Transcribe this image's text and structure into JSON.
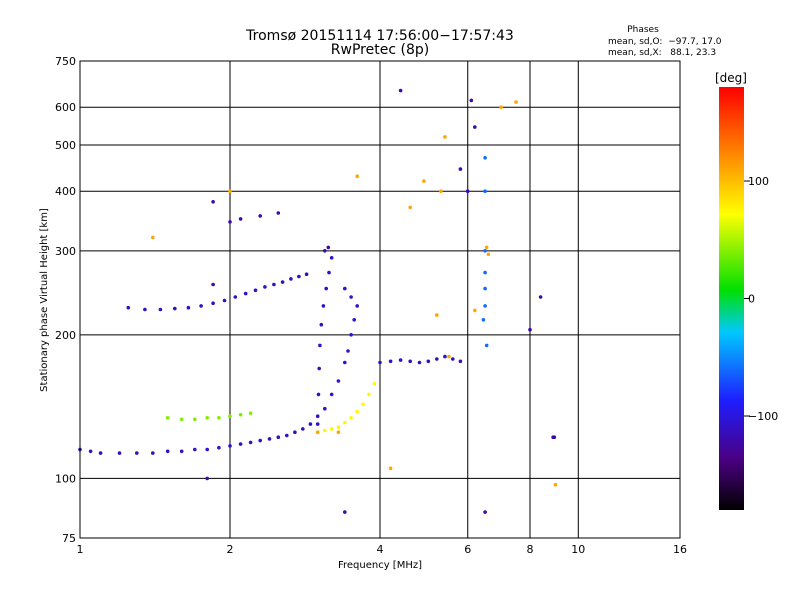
{
  "chart_data": {
    "type": "scatter",
    "title_line1": "Tromsø 20151114 17:56:00−17:57:43",
    "title_line2": "RwPretec (8p)",
    "phases": {
      "heading": "Phases",
      "line_o": "mean, sd,O:  −97.7, 17.0",
      "line_x": "mean, sd,X:   88.1, 23.3"
    },
    "xlabel": "Frequency [MHz]",
    "ylabel": "Stationary phase Virtual Height [km]",
    "xscale": "log",
    "yscale": "log",
    "xlim": [
      1,
      16
    ],
    "ylim": [
      75,
      750
    ],
    "x_ticks": [
      1,
      2,
      4,
      6,
      8,
      10,
      16
    ],
    "x_tick_labels": [
      "1",
      "2",
      "4",
      "6",
      "8",
      "10",
      "16"
    ],
    "y_ticks": [
      75,
      100,
      200,
      300,
      400,
      500,
      600,
      750
    ],
    "y_tick_labels": [
      "75",
      "100",
      "200",
      "300",
      "400",
      "500",
      "600",
      "750"
    ],
    "grid": true,
    "colorbar": {
      "label": "[deg]",
      "range": [
        -180,
        180
      ],
      "ticks": [
        100,
        0,
        -100
      ],
      "tick_labels": [
        "100",
        "0",
        "−100"
      ]
    },
    "traces": [
      {
        "name": "o-mode-low-layer",
        "phase": -110,
        "points": [
          [
            1.0,
            115
          ],
          [
            1.05,
            114
          ],
          [
            1.1,
            113
          ],
          [
            1.2,
            113
          ],
          [
            1.3,
            113
          ],
          [
            1.4,
            113
          ],
          [
            1.5,
            114
          ],
          [
            1.6,
            114
          ],
          [
            1.7,
            115
          ],
          [
            1.8,
            115
          ],
          [
            1.9,
            116
          ],
          [
            2.0,
            117
          ],
          [
            2.1,
            118
          ],
          [
            2.2,
            119
          ],
          [
            2.3,
            120
          ],
          [
            2.4,
            121
          ],
          [
            2.5,
            122
          ],
          [
            2.6,
            123
          ],
          [
            2.7,
            125
          ],
          [
            2.8,
            127
          ],
          [
            2.9,
            130
          ],
          [
            3.0,
            135
          ]
        ]
      },
      {
        "name": "o-mode-cusp",
        "phase": -110,
        "points": [
          [
            3.0,
            130
          ],
          [
            3.01,
            150
          ],
          [
            3.02,
            170
          ],
          [
            3.03,
            190
          ],
          [
            3.05,
            210
          ],
          [
            3.08,
            230
          ],
          [
            3.12,
            250
          ],
          [
            3.16,
            270
          ],
          [
            3.2,
            290
          ]
        ]
      },
      {
        "name": "o-mode-F-layer-base",
        "phase": -105,
        "points": [
          [
            3.1,
            140
          ],
          [
            3.2,
            150
          ],
          [
            3.3,
            160
          ],
          [
            3.4,
            175
          ],
          [
            3.45,
            185
          ],
          [
            3.5,
            200
          ],
          [
            3.55,
            215
          ],
          [
            3.6,
            230
          ],
          [
            3.5,
            240
          ],
          [
            3.4,
            250
          ]
        ]
      },
      {
        "name": "o-mode-upper-trace",
        "phase": -110,
        "points": [
          [
            1.25,
            228
          ],
          [
            1.35,
            226
          ],
          [
            1.45,
            226
          ],
          [
            1.55,
            227
          ],
          [
            1.65,
            228
          ],
          [
            1.75,
            230
          ],
          [
            1.85,
            233
          ],
          [
            1.95,
            236
          ],
          [
            2.05,
            240
          ],
          [
            2.15,
            244
          ],
          [
            2.25,
            248
          ],
          [
            2.35,
            252
          ],
          [
            2.45,
            255
          ],
          [
            2.55,
            258
          ],
          [
            2.65,
            262
          ],
          [
            2.75,
            265
          ],
          [
            2.85,
            268
          ]
        ]
      },
      {
        "name": "x-mode-trace",
        "phase": 75,
        "points": [
          [
            3.0,
            125
          ],
          [
            3.1,
            126
          ],
          [
            3.2,
            127
          ],
          [
            3.3,
            128
          ],
          [
            3.4,
            131
          ],
          [
            3.5,
            134
          ],
          [
            3.6,
            138
          ],
          [
            3.7,
            143
          ],
          [
            3.8,
            150
          ],
          [
            3.9,
            158
          ]
        ]
      },
      {
        "name": "mixed-1.5-2.0",
        "phase": 40,
        "points": [
          [
            1.5,
            134
          ],
          [
            1.6,
            133
          ],
          [
            1.7,
            133
          ],
          [
            1.8,
            134
          ],
          [
            1.9,
            134
          ],
          [
            2.0,
            135
          ],
          [
            2.1,
            136
          ],
          [
            2.2,
            137
          ]
        ]
      },
      {
        "name": "F-layer-4-6MHz",
        "phase": -110,
        "points": [
          [
            4.0,
            175
          ],
          [
            4.2,
            176
          ],
          [
            4.4,
            177
          ],
          [
            4.6,
            176
          ],
          [
            4.8,
            175
          ],
          [
            5.0,
            176
          ],
          [
            5.2,
            178
          ],
          [
            5.4,
            180
          ],
          [
            5.6,
            178
          ],
          [
            5.8,
            176
          ]
        ]
      },
      {
        "name": "spike-6.5MHz",
        "phase": -60,
        "points": [
          [
            6.5,
            300
          ],
          [
            6.5,
            270
          ],
          [
            6.5,
            250
          ],
          [
            6.5,
            230
          ],
          [
            6.45,
            215
          ],
          [
            6.55,
            190
          ],
          [
            6.5,
            400
          ],
          [
            6.5,
            470
          ]
        ]
      },
      {
        "name": "scatter-high",
        "phase": -120,
        "points": [
          [
            1.85,
            380
          ],
          [
            2.0,
            345
          ],
          [
            2.1,
            350
          ],
          [
            2.3,
            355
          ],
          [
            2.5,
            360
          ],
          [
            4.4,
            650
          ],
          [
            6.1,
            620
          ],
          [
            6.2,
            545
          ],
          [
            5.8,
            445
          ],
          [
            6.0,
            400
          ],
          [
            8.0,
            205
          ],
          [
            8.4,
            240
          ],
          [
            8.9,
            122
          ],
          [
            8.95,
            122
          ],
          [
            6.5,
            85
          ],
          [
            3.4,
            85
          ],
          [
            1.8,
            100
          ],
          [
            1.85,
            255
          ],
          [
            3.1,
            300
          ],
          [
            3.15,
            305
          ]
        ]
      },
      {
        "name": "scatter-warm",
        "phase": 110,
        "points": [
          [
            7.5,
            615
          ],
          [
            7.0,
            600
          ],
          [
            5.4,
            520
          ],
          [
            4.9,
            420
          ],
          [
            5.3,
            400
          ],
          [
            4.6,
            370
          ],
          [
            3.6,
            430
          ],
          [
            1.4,
            320
          ],
          [
            2.0,
            400
          ],
          [
            5.2,
            220
          ],
          [
            5.5,
            180
          ],
          [
            6.2,
            225
          ],
          [
            6.55,
            305
          ],
          [
            6.6,
            295
          ],
          [
            9.0,
            97
          ],
          [
            4.2,
            105
          ],
          [
            3.3,
            125
          ],
          [
            3.0,
            125
          ]
        ]
      }
    ]
  }
}
